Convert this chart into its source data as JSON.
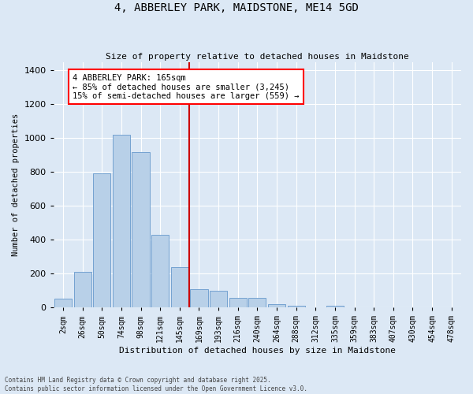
{
  "title": "4, ABBERLEY PARK, MAIDSTONE, ME14 5GD",
  "subtitle": "Size of property relative to detached houses in Maidstone",
  "xlabel": "Distribution of detached houses by size in Maidstone",
  "ylabel": "Number of detached properties",
  "footer_line1": "Contains HM Land Registry data © Crown copyright and database right 2025.",
  "footer_line2": "Contains public sector information licensed under the Open Government Licence v3.0.",
  "annotation_line1": "4 ABBERLEY PARK: 165sqm",
  "annotation_line2": "← 85% of detached houses are smaller (3,245)",
  "annotation_line3": "15% of semi-detached houses are larger (559) →",
  "bar_color": "#b8d0e8",
  "bar_edge_color": "#6699cc",
  "vline_color": "#cc0000",
  "vline_x": 7.0,
  "background_color": "#dce8f5",
  "categories": [
    "2sqm",
    "26sqm",
    "50sqm",
    "74sqm",
    "98sqm",
    "121sqm",
    "145sqm",
    "169sqm",
    "193sqm",
    "216sqm",
    "240sqm",
    "264sqm",
    "288sqm",
    "312sqm",
    "335sqm",
    "359sqm",
    "383sqm",
    "407sqm",
    "430sqm",
    "454sqm",
    "478sqm"
  ],
  "values": [
    50,
    210,
    790,
    1020,
    920,
    430,
    240,
    110,
    100,
    55,
    55,
    20,
    10,
    0,
    10,
    0,
    0,
    0,
    0,
    0,
    0
  ],
  "ylim": [
    0,
    1450
  ],
  "yticks": [
    0,
    200,
    400,
    600,
    800,
    1000,
    1200,
    1400
  ],
  "figsize": [
    6.0,
    5.0
  ],
  "dpi": 100
}
